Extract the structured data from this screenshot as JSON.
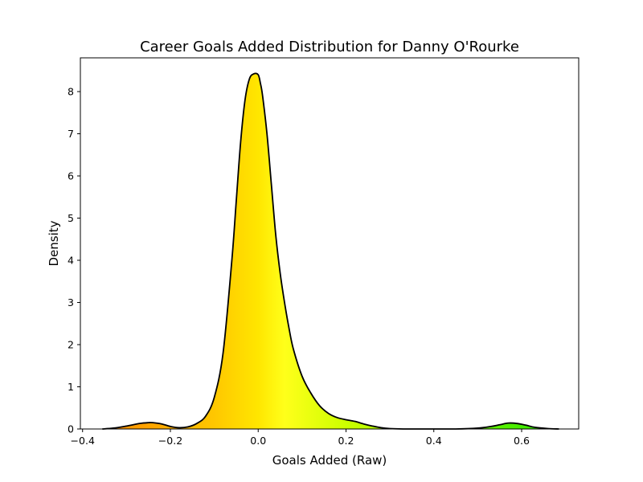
{
  "chart_data": {
    "type": "area",
    "title": "Career Goals Added Distribution for Danny O'Rourke",
    "xlabel": "Goals Added (Raw)",
    "ylabel": "Density",
    "xlim": [
      -0.405,
      0.73
    ],
    "ylim": [
      0,
      8.8
    ],
    "grid": false,
    "x_ticks": [
      {
        "value": -0.4,
        "label": "−0.4"
      },
      {
        "value": -0.2,
        "label": "−0.2"
      },
      {
        "value": 0.0,
        "label": "0.0"
      },
      {
        "value": 0.2,
        "label": "0.2"
      },
      {
        "value": 0.4,
        "label": "0.4"
      },
      {
        "value": 0.6,
        "label": "0.6"
      }
    ],
    "y_ticks": [
      {
        "value": 0,
        "label": "0"
      },
      {
        "value": 1,
        "label": "1"
      },
      {
        "value": 2,
        "label": "2"
      },
      {
        "value": 3,
        "label": "3"
      },
      {
        "value": 4,
        "label": "4"
      },
      {
        "value": 5,
        "label": "5"
      },
      {
        "value": 6,
        "label": "6"
      },
      {
        "value": 7,
        "label": "7"
      },
      {
        "value": 8,
        "label": "8"
      }
    ],
    "series": [
      {
        "name": "density",
        "x": [
          -0.355,
          -0.33,
          -0.3,
          -0.27,
          -0.25,
          -0.24,
          -0.22,
          -0.2,
          -0.18,
          -0.16,
          -0.14,
          -0.12,
          -0.1,
          -0.08,
          -0.06,
          -0.05,
          -0.04,
          -0.03,
          -0.02,
          -0.01,
          0.0,
          0.005,
          0.01,
          0.02,
          0.03,
          0.04,
          0.05,
          0.06,
          0.07,
          0.08,
          0.1,
          0.12,
          0.14,
          0.16,
          0.18,
          0.2,
          0.22,
          0.24,
          0.26,
          0.28,
          0.3,
          0.33,
          0.36,
          0.4,
          0.45,
          0.5,
          0.53,
          0.55,
          0.57,
          0.59,
          0.61,
          0.63,
          0.66,
          0.685
        ],
        "y": [
          0.0,
          0.02,
          0.07,
          0.13,
          0.15,
          0.15,
          0.12,
          0.06,
          0.03,
          0.05,
          0.13,
          0.3,
          0.75,
          1.8,
          4.0,
          5.4,
          6.8,
          7.8,
          8.3,
          8.42,
          8.4,
          8.2,
          7.9,
          7.0,
          5.8,
          4.6,
          3.7,
          3.0,
          2.4,
          1.9,
          1.25,
          0.85,
          0.55,
          0.37,
          0.27,
          0.22,
          0.18,
          0.12,
          0.07,
          0.03,
          0.01,
          0.0,
          0.0,
          0.0,
          0.0,
          0.02,
          0.06,
          0.1,
          0.14,
          0.13,
          0.09,
          0.04,
          0.01,
          0.0
        ]
      }
    ],
    "fill_gradient": {
      "stops": [
        {
          "x": -0.355,
          "color": "#ff8c00"
        },
        {
          "x": -0.1,
          "color": "#ffc700"
        },
        {
          "x": 0.0,
          "color": "#ffe600"
        },
        {
          "x": 0.06,
          "color": "#ffff1a"
        },
        {
          "x": 0.2,
          "color": "#ccff00"
        },
        {
          "x": 0.45,
          "color": "#80ff00"
        },
        {
          "x": 0.685,
          "color": "#22e000"
        }
      ]
    },
    "line_color": "#000000"
  }
}
